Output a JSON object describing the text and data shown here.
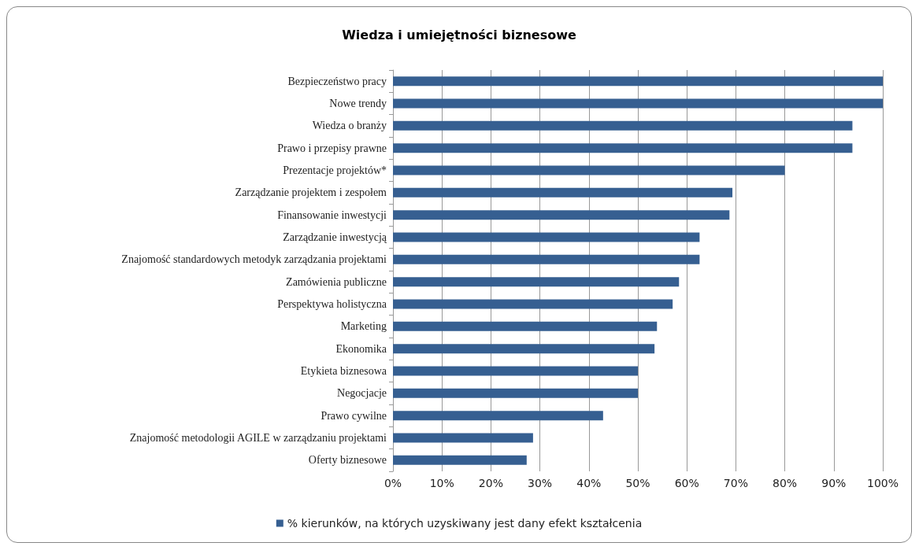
{
  "chart_data": {
    "type": "bar",
    "orientation": "horizontal",
    "title": "Wiedza i umiejętności biznesowe",
    "categories": [
      "Bezpieczeństwo pracy",
      "Nowe trendy",
      "Wiedza o branży",
      "Prawo i przepisy prawne",
      "Prezentacje projektów*",
      "Zarządzanie projektem i zespołem",
      "Finansowanie inwestycji",
      "Zarządzanie inwestycją",
      "Znajomość standardowych metodyk zarządzania projektami",
      "Zamówienia publiczne",
      "Perspektywa holistyczna",
      "Marketing",
      "Ekonomika",
      "Etykieta biznesowa",
      "Negocjacje",
      "Prawo cywilne",
      "Znajomość metodologii AGILE w zarządzaniu projektami",
      "Oferty biznesowe"
    ],
    "series": [
      {
        "name": "% kierunków, na których uzyskiwany jest dany efekt kształcenia",
        "color": "#365f91",
        "values": [
          100,
          100,
          93.8,
          93.8,
          80,
          69.3,
          68.7,
          62.6,
          62.6,
          58.4,
          57.1,
          53.9,
          53.4,
          50,
          50,
          42.9,
          28.6,
          27.3
        ]
      }
    ],
    "xlim": [
      0,
      100
    ],
    "xticks": [
      {
        "value": 0,
        "label": "0%"
      },
      {
        "value": 10,
        "label": "10%"
      },
      {
        "value": 20,
        "label": "20%"
      },
      {
        "value": 30,
        "label": "30%"
      },
      {
        "value": 40,
        "label": "40%"
      },
      {
        "value": 50,
        "label": "50%"
      },
      {
        "value": 60,
        "label": "60%"
      },
      {
        "value": 70,
        "label": "70%"
      },
      {
        "value": 80,
        "label": "80%"
      },
      {
        "value": 90,
        "label": "90%"
      },
      {
        "value": 100,
        "label": "100%"
      }
    ],
    "grid": "x",
    "legend": "bottom"
  }
}
